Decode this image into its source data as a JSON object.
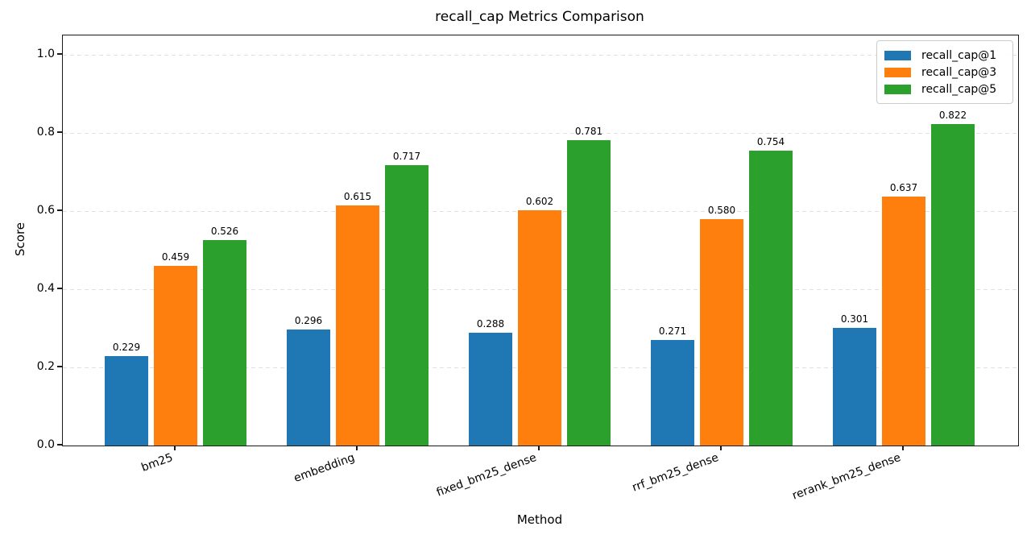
{
  "title": "recall_cap Metrics Comparison",
  "chart_data": {
    "type": "bar",
    "title": "recall_cap Metrics Comparison",
    "xlabel": "Method",
    "ylabel": "Score",
    "ylim": [
      0,
      1.05
    ],
    "yticks": [
      "0.0",
      "0.2",
      "0.4",
      "0.6",
      "0.8",
      "1.0"
    ],
    "grid": "horizontal-dashed",
    "legend_position": "upper-right",
    "categories": [
      "bm25",
      "embedding",
      "fixed_bm25_dense",
      "rrf_bm25_dense",
      "rerank_bm25_dense"
    ],
    "series": [
      {
        "name": "recall_cap@1",
        "color": "#1f77b4",
        "values": [
          0.229,
          0.296,
          0.288,
          0.271,
          0.301
        ],
        "labels": [
          "0.229",
          "0.296",
          "0.288",
          "0.271",
          "0.301"
        ]
      },
      {
        "name": "recall_cap@3",
        "color": "#ff7f0e",
        "values": [
          0.459,
          0.615,
          0.602,
          0.58,
          0.637
        ],
        "labels": [
          "0.459",
          "0.615",
          "0.602",
          "0.580",
          "0.637"
        ]
      },
      {
        "name": "recall_cap@5",
        "color": "#2ca02c",
        "values": [
          0.526,
          0.717,
          0.781,
          0.754,
          0.822
        ],
        "labels": [
          "0.526",
          "0.717",
          "0.781",
          "0.754",
          "0.822"
        ]
      }
    ]
  }
}
